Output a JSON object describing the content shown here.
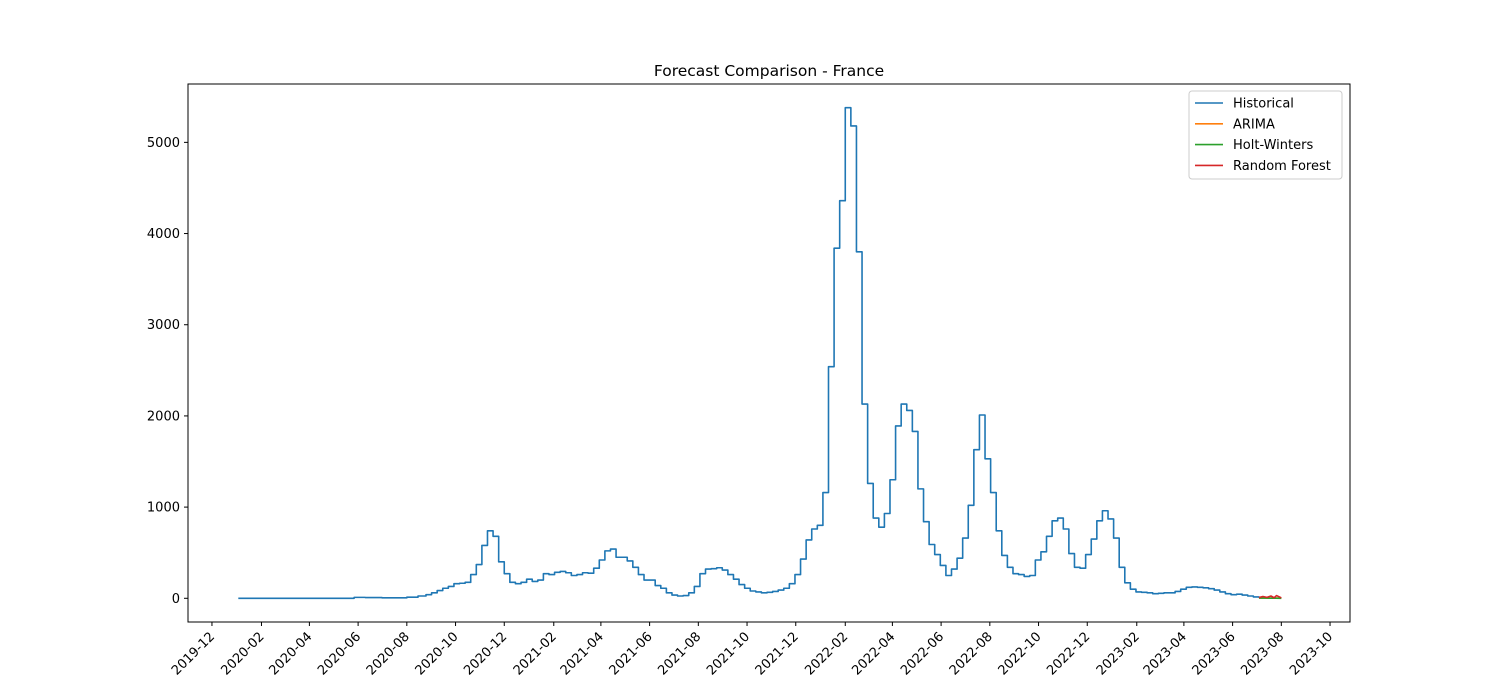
{
  "chart_data": {
    "type": "line",
    "title": "Forecast Comparison - France",
    "xlabel": "",
    "ylabel": "",
    "x_axis": "date",
    "xlim": [
      "2019-11-01",
      "2023-10-26"
    ],
    "ylim": [
      -260,
      5640
    ],
    "x_ticks": [
      "2019-12",
      "2020-02",
      "2020-04",
      "2020-06",
      "2020-08",
      "2020-10",
      "2020-12",
      "2021-02",
      "2021-04",
      "2021-06",
      "2021-08",
      "2021-10",
      "2021-12",
      "2022-02",
      "2022-04",
      "2022-06",
      "2022-08",
      "2022-10",
      "2022-12",
      "2023-02",
      "2023-04",
      "2023-06",
      "2023-08",
      "2023-10"
    ],
    "y_ticks": [
      0,
      1000,
      2000,
      3000,
      4000,
      5000
    ],
    "grid": false,
    "legend_position": "top-right",
    "series": [
      {
        "name": "Historical",
        "color": "#1f77b4",
        "step": true,
        "points": [
          [
            "2020-01-03",
            0
          ],
          [
            "2020-02-01",
            0
          ],
          [
            "2020-03-01",
            0
          ],
          [
            "2020-04-01",
            0
          ],
          [
            "2020-05-01",
            0
          ],
          [
            "2020-05-20",
            0
          ],
          [
            "2020-05-27",
            10
          ],
          [
            "2020-06-10",
            8
          ],
          [
            "2020-07-01",
            5
          ],
          [
            "2020-07-15",
            5
          ],
          [
            "2020-08-01",
            12
          ],
          [
            "2020-08-15",
            25
          ],
          [
            "2020-08-25",
            40
          ],
          [
            "2020-09-01",
            60
          ],
          [
            "2020-09-08",
            85
          ],
          [
            "2020-09-15",
            110
          ],
          [
            "2020-09-22",
            130
          ],
          [
            "2020-09-29",
            160
          ],
          [
            "2020-10-06",
            165
          ],
          [
            "2020-10-13",
            175
          ],
          [
            "2020-10-20",
            260
          ],
          [
            "2020-10-27",
            370
          ],
          [
            "2020-11-03",
            580
          ],
          [
            "2020-11-10",
            740
          ],
          [
            "2020-11-17",
            680
          ],
          [
            "2020-11-24",
            400
          ],
          [
            "2020-12-01",
            270
          ],
          [
            "2020-12-08",
            175
          ],
          [
            "2020-12-15",
            160
          ],
          [
            "2020-12-22",
            175
          ],
          [
            "2020-12-29",
            210
          ],
          [
            "2021-01-05",
            185
          ],
          [
            "2021-01-12",
            200
          ],
          [
            "2021-01-19",
            270
          ],
          [
            "2021-01-26",
            260
          ],
          [
            "2021-02-02",
            285
          ],
          [
            "2021-02-09",
            295
          ],
          [
            "2021-02-16",
            280
          ],
          [
            "2021-02-23",
            250
          ],
          [
            "2021-03-02",
            260
          ],
          [
            "2021-03-09",
            280
          ],
          [
            "2021-03-16",
            275
          ],
          [
            "2021-03-23",
            330
          ],
          [
            "2021-03-30",
            420
          ],
          [
            "2021-04-06",
            520
          ],
          [
            "2021-04-13",
            540
          ],
          [
            "2021-04-20",
            450
          ],
          [
            "2021-04-27",
            450
          ],
          [
            "2021-05-04",
            410
          ],
          [
            "2021-05-11",
            340
          ],
          [
            "2021-05-18",
            260
          ],
          [
            "2021-05-25",
            200
          ],
          [
            "2021-06-01",
            200
          ],
          [
            "2021-06-08",
            140
          ],
          [
            "2021-06-15",
            110
          ],
          [
            "2021-06-22",
            60
          ],
          [
            "2021-06-29",
            35
          ],
          [
            "2021-07-06",
            25
          ],
          [
            "2021-07-13",
            30
          ],
          [
            "2021-07-20",
            60
          ],
          [
            "2021-07-27",
            130
          ],
          [
            "2021-08-03",
            270
          ],
          [
            "2021-08-10",
            320
          ],
          [
            "2021-08-17",
            325
          ],
          [
            "2021-08-24",
            335
          ],
          [
            "2021-08-31",
            310
          ],
          [
            "2021-09-07",
            260
          ],
          [
            "2021-09-14",
            210
          ],
          [
            "2021-09-21",
            150
          ],
          [
            "2021-09-28",
            110
          ],
          [
            "2021-10-05",
            80
          ],
          [
            "2021-10-12",
            70
          ],
          [
            "2021-10-19",
            60
          ],
          [
            "2021-10-26",
            65
          ],
          [
            "2021-11-02",
            75
          ],
          [
            "2021-11-09",
            90
          ],
          [
            "2021-11-16",
            110
          ],
          [
            "2021-11-23",
            160
          ],
          [
            "2021-11-30",
            260
          ],
          [
            "2021-12-07",
            430
          ],
          [
            "2021-12-14",
            640
          ],
          [
            "2021-12-21",
            760
          ],
          [
            "2021-12-28",
            800
          ],
          [
            "2022-01-04",
            1160
          ],
          [
            "2022-01-11",
            2540
          ],
          [
            "2022-01-18",
            3840
          ],
          [
            "2022-01-25",
            4360
          ],
          [
            "2022-02-01",
            5380
          ],
          [
            "2022-02-08",
            5180
          ],
          [
            "2022-02-15",
            3800
          ],
          [
            "2022-02-22",
            2130
          ],
          [
            "2022-03-01",
            1260
          ],
          [
            "2022-03-08",
            880
          ],
          [
            "2022-03-15",
            780
          ],
          [
            "2022-03-22",
            930
          ],
          [
            "2022-03-29",
            1300
          ],
          [
            "2022-04-05",
            1890
          ],
          [
            "2022-04-12",
            2130
          ],
          [
            "2022-04-19",
            2060
          ],
          [
            "2022-04-26",
            1830
          ],
          [
            "2022-05-03",
            1200
          ],
          [
            "2022-05-10",
            840
          ],
          [
            "2022-05-17",
            590
          ],
          [
            "2022-05-24",
            480
          ],
          [
            "2022-05-31",
            360
          ],
          [
            "2022-06-07",
            250
          ],
          [
            "2022-06-14",
            320
          ],
          [
            "2022-06-21",
            440
          ],
          [
            "2022-06-28",
            660
          ],
          [
            "2022-07-05",
            1020
          ],
          [
            "2022-07-12",
            1630
          ],
          [
            "2022-07-19",
            2010
          ],
          [
            "2022-07-26",
            1530
          ],
          [
            "2022-08-02",
            1160
          ],
          [
            "2022-08-09",
            740
          ],
          [
            "2022-08-16",
            470
          ],
          [
            "2022-08-23",
            340
          ],
          [
            "2022-08-30",
            270
          ],
          [
            "2022-09-06",
            260
          ],
          [
            "2022-09-13",
            240
          ],
          [
            "2022-09-20",
            250
          ],
          [
            "2022-09-27",
            420
          ],
          [
            "2022-10-04",
            510
          ],
          [
            "2022-10-11",
            680
          ],
          [
            "2022-10-18",
            850
          ],
          [
            "2022-10-25",
            880
          ],
          [
            "2022-11-01",
            760
          ],
          [
            "2022-11-08",
            490
          ],
          [
            "2022-11-15",
            340
          ],
          [
            "2022-11-22",
            330
          ],
          [
            "2022-11-29",
            480
          ],
          [
            "2022-12-06",
            650
          ],
          [
            "2022-12-13",
            850
          ],
          [
            "2022-12-20",
            960
          ],
          [
            "2022-12-27",
            870
          ],
          [
            "2023-01-03",
            660
          ],
          [
            "2023-01-10",
            340
          ],
          [
            "2023-01-17",
            170
          ],
          [
            "2023-01-24",
            100
          ],
          [
            "2023-01-31",
            70
          ],
          [
            "2023-02-07",
            65
          ],
          [
            "2023-02-14",
            60
          ],
          [
            "2023-02-21",
            50
          ],
          [
            "2023-02-28",
            55
          ],
          [
            "2023-03-07",
            60
          ],
          [
            "2023-03-14",
            60
          ],
          [
            "2023-03-21",
            75
          ],
          [
            "2023-03-28",
            100
          ],
          [
            "2023-04-04",
            120
          ],
          [
            "2023-04-11",
            125
          ],
          [
            "2023-04-18",
            120
          ],
          [
            "2023-04-25",
            115
          ],
          [
            "2023-05-02",
            105
          ],
          [
            "2023-05-09",
            90
          ],
          [
            "2023-05-16",
            70
          ],
          [
            "2023-05-23",
            50
          ],
          [
            "2023-05-30",
            40
          ],
          [
            "2023-06-06",
            45
          ],
          [
            "2023-06-13",
            35
          ],
          [
            "2023-06-20",
            25
          ],
          [
            "2023-06-27",
            15
          ],
          [
            "2023-07-04",
            5
          ]
        ]
      },
      {
        "name": "ARIMA",
        "color": "#ff7f0e",
        "step": false,
        "points": [
          [
            "2023-07-04",
            2
          ],
          [
            "2023-07-11",
            3
          ],
          [
            "2023-07-18",
            2
          ],
          [
            "2023-07-25",
            3
          ],
          [
            "2023-08-01",
            2
          ]
        ]
      },
      {
        "name": "Holt-Winters",
        "color": "#2ca02c",
        "step": false,
        "points": [
          [
            "2023-07-04",
            3
          ],
          [
            "2023-07-11",
            2
          ],
          [
            "2023-07-18",
            1
          ],
          [
            "2023-07-25",
            1
          ],
          [
            "2023-08-01",
            0
          ]
        ]
      },
      {
        "name": "Random Forest",
        "color": "#d62728",
        "step": false,
        "points": [
          [
            "2023-07-04",
            8
          ],
          [
            "2023-07-09",
            20
          ],
          [
            "2023-07-14",
            10
          ],
          [
            "2023-07-19",
            25
          ],
          [
            "2023-07-23",
            6
          ],
          [
            "2023-07-26",
            30
          ],
          [
            "2023-08-01",
            5
          ]
        ]
      }
    ]
  }
}
